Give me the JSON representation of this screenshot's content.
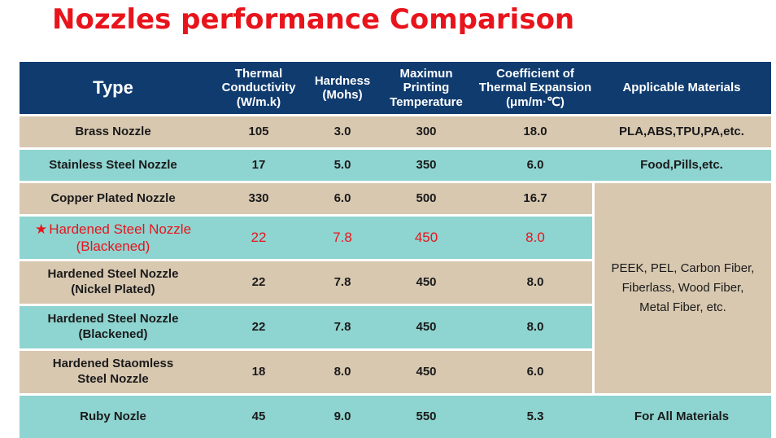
{
  "title": "Nozzles performance Comparison",
  "headers": {
    "type": "Type",
    "thermal_line1": "Thermal Conductivity",
    "thermal_line2": "(W/m.k)",
    "hardness_line1": "Hardness",
    "hardness_line2": "(Mohs)",
    "maxtemp_line1": "Maximun",
    "maxtemp_line2": "Printing",
    "maxtemp_line3": "Temperature",
    "cte_line1": "Coefficient of",
    "cte_line2": "Thermal Expansion",
    "cte_line3": "(μm/m·℃)",
    "materials": "Applicable Materials"
  },
  "rows": [
    {
      "type_line1": "Brass Nozzle",
      "type_line2": "",
      "thermal": "105",
      "hardness": "3.0",
      "temp": "300",
      "cte": "18.0",
      "materials": "PLA,ABS,TPU,PA,etc."
    },
    {
      "type_line1": "Stainless Steel Nozzle",
      "type_line2": "",
      "thermal": "17",
      "hardness": "5.0",
      "temp": "350",
      "cte": "6.0",
      "materials": "Food,Pills,etc."
    },
    {
      "type_line1": "Copper Plated Nozzle",
      "type_line2": "",
      "thermal": "330",
      "hardness": "6.0",
      "temp": "500",
      "cte": "16.7"
    },
    {
      "type_line1": "Hardened Steel Nozzle",
      "type_line2": "(Blackened)",
      "thermal": "22",
      "hardness": "7.8",
      "temp": "450",
      "cte": "8.0",
      "highlight": true
    },
    {
      "type_line1": "Hardened Steel Nozzle",
      "type_line2": "(Nickel Plated)",
      "thermal": "22",
      "hardness": "7.8",
      "temp": "450",
      "cte": "8.0"
    },
    {
      "type_line1": "Hardened Steel Nozzle",
      "type_line2": "(Blackened)",
      "thermal": "22",
      "hardness": "7.8",
      "temp": "450",
      "cte": "8.0"
    },
    {
      "type_line1": "Hardened Staomless",
      "type_line2": "Steel Nozzle",
      "thermal": "18",
      "hardness": "8.0",
      "temp": "450",
      "cte": "6.0"
    },
    {
      "type_line1": "Ruby Nozle",
      "type_line2": "",
      "thermal": "45",
      "hardness": "9.0",
      "temp": "550",
      "cte": "5.3",
      "materials": "For All Materials"
    }
  ],
  "merged_materials": {
    "line1": "PEEK, PEL, Carbon Fiber,",
    "line2": "Fiberlass, Wood Fiber,",
    "line3": "Metal Fiber, etc."
  },
  "colors": {
    "title": "#e8141c",
    "header_bg": "#0f3b6f",
    "row_tan": "#d8c8b0",
    "row_teal": "#8ed4d0",
    "highlight": "#e8141c"
  },
  "icons": {
    "highlight_marker": "star-icon"
  }
}
